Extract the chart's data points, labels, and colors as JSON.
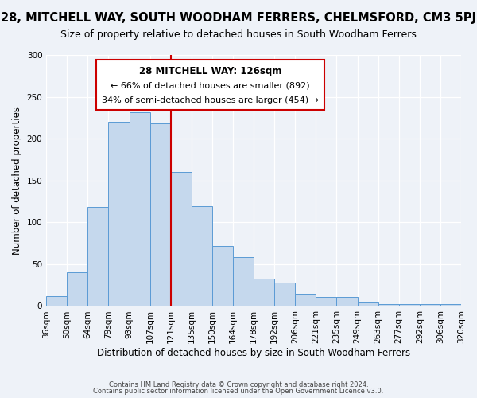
{
  "title": "28, MITCHELL WAY, SOUTH WOODHAM FERRERS, CHELMSFORD, CM3 5PJ",
  "subtitle": "Size of property relative to detached houses in South Woodham Ferrers",
  "xlabel": "Distribution of detached houses by size in South Woodham Ferrers",
  "ylabel": "Number of detached properties",
  "bin_labels": [
    "36sqm",
    "50sqm",
    "64sqm",
    "79sqm",
    "93sqm",
    "107sqm",
    "121sqm",
    "135sqm",
    "150sqm",
    "164sqm",
    "178sqm",
    "192sqm",
    "206sqm",
    "221sqm",
    "235sqm",
    "249sqm",
    "263sqm",
    "277sqm",
    "292sqm",
    "306sqm",
    "320sqm"
  ],
  "bar_heights": [
    12,
    40,
    118,
    220,
    232,
    218,
    160,
    119,
    72,
    58,
    33,
    28,
    15,
    11,
    11,
    4,
    2,
    2,
    2,
    2
  ],
  "bar_color": "#c5d8ed",
  "bar_edge_color": "#5b9bd5",
  "property_line_x": 6,
  "property_label": "28 MITCHELL WAY: 126sqm",
  "annotation_line1": "← 66% of detached houses are smaller (892)",
  "annotation_line2": "34% of semi-detached houses are larger (454) →",
  "vline_color": "#cc0000",
  "box_edge_color": "#cc0000",
  "footer1": "Contains HM Land Registry data © Crown copyright and database right 2024.",
  "footer2": "Contains public sector information licensed under the Open Government Licence v3.0.",
  "background_color": "#eef2f8",
  "plot_bg_color": "#eef2f8",
  "ylim": [
    0,
    300
  ],
  "title_fontsize": 10.5,
  "subtitle_fontsize": 9,
  "axis_label_fontsize": 8.5,
  "tick_fontsize": 7.5
}
